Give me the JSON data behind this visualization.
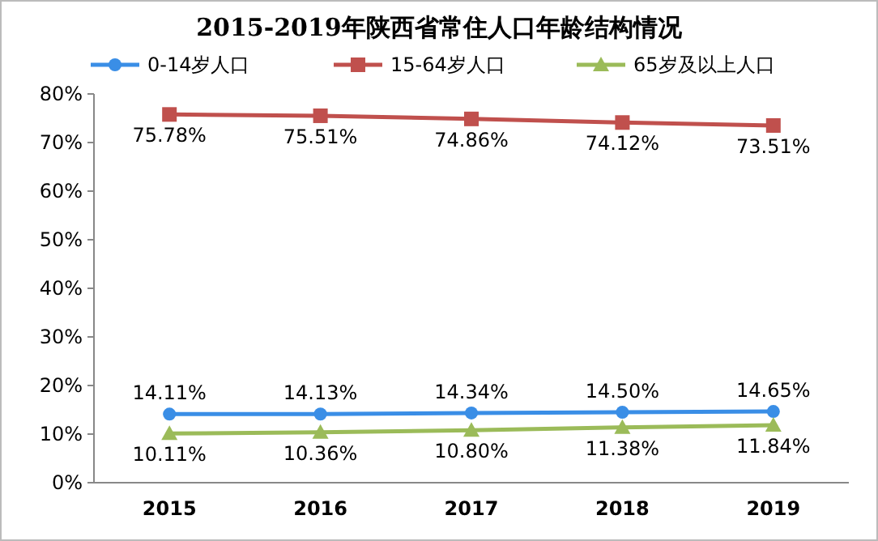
{
  "chart_data": {
    "type": "line",
    "title": "2015-2019年陕西省常住人口年龄结构情况",
    "categories": [
      "2015",
      "2016",
      "2017",
      "2018",
      "2019"
    ],
    "series": [
      {
        "name": "0-14岁人口",
        "color": "#3a8ee6",
        "marker": "circle",
        "values": [
          14.11,
          14.13,
          14.34,
          14.5,
          14.65
        ],
        "value_labels": [
          "14.11%",
          "14.13%",
          "14.34%",
          "14.50%",
          "14.65%"
        ]
      },
      {
        "name": "15-64岁人口",
        "color": "#c0504d",
        "marker": "square",
        "values": [
          75.78,
          75.51,
          74.86,
          74.12,
          73.51
        ],
        "value_labels": [
          "75.78%",
          "75.51%",
          "74.86%",
          "74.12%",
          "73.51%"
        ]
      },
      {
        "name": "65岁及以上人口",
        "color": "#9bbb59",
        "marker": "triangle",
        "values": [
          10.11,
          10.36,
          10.8,
          11.38,
          11.84
        ],
        "value_labels": [
          "10.11%",
          "10.36%",
          "10.80%",
          "11.38%",
          "11.84%"
        ]
      }
    ],
    "ylim": [
      0,
      80
    ],
    "yticks": [
      {
        "value": 0,
        "label": "0%"
      },
      {
        "value": 10,
        "label": "10%"
      },
      {
        "value": 20,
        "label": "20%"
      },
      {
        "value": 30,
        "label": "30%"
      },
      {
        "value": 40,
        "label": "40%"
      },
      {
        "value": 50,
        "label": "50%"
      },
      {
        "value": 60,
        "label": "60%"
      },
      {
        "value": 70,
        "label": "70%"
      },
      {
        "value": 80,
        "label": "80%"
      }
    ],
    "grid": false,
    "legend": "top"
  }
}
